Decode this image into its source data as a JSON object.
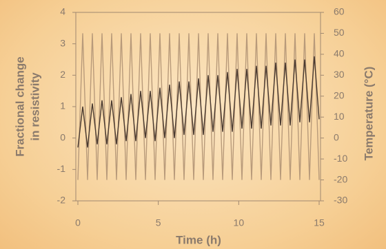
{
  "chart_data": {
    "type": "line",
    "xlabel": "Time (h)",
    "ylabel": [
      "Fractional change",
      "in resistivity"
    ],
    "y2label": "Temperature (°C)",
    "xlim": [
      0,
      15
    ],
    "xticks": [
      0,
      5,
      10,
      15
    ],
    "ylim": [
      -2,
      4
    ],
    "yticks": [
      4,
      3,
      2,
      1,
      0,
      -1,
      -2
    ],
    "y2lim": [
      -30,
      60
    ],
    "y2ticks": [
      60,
      50,
      40,
      30,
      20,
      10,
      0,
      -10,
      -20,
      -30
    ],
    "x": [
      0,
      0.3,
      0.6,
      0.9,
      1.2,
      1.5,
      1.8,
      2.1,
      2.4,
      2.7,
      3,
      3.3,
      3.6,
      3.9,
      4.2,
      4.5,
      4.8,
      5.1,
      5.4,
      5.7,
      6,
      6.3,
      6.6,
      6.9,
      7.2,
      7.5,
      7.8,
      8.1,
      8.4,
      8.7,
      9,
      9.3,
      9.6,
      9.9,
      10.2,
      10.5,
      10.8,
      11.1,
      11.4,
      11.7,
      12,
      12.3,
      12.6,
      12.9,
      13.2,
      13.5,
      13.8,
      14.1,
      14.4,
      14.7,
      15
    ],
    "series": [
      {
        "color": "#b89a7a",
        "axis": "y2",
        "values": [
          -20,
          50,
          -20,
          50,
          -20,
          50,
          -20,
          50,
          -20,
          50,
          -20,
          50,
          -20,
          50,
          -20,
          50,
          -20,
          50,
          -20,
          50,
          -20,
          50,
          -20,
          50,
          -20,
          50,
          -20,
          50,
          -20,
          50,
          -20,
          50,
          -20,
          50,
          -20,
          50,
          -20,
          50,
          -20,
          50,
          -20,
          50,
          -20,
          50,
          -20,
          50,
          -20,
          50,
          -20,
          50,
          -20
        ]
      },
      {
        "color": "#4a3a30",
        "values": [
          -0.3,
          1.0,
          -0.3,
          1.1,
          -0.2,
          1.2,
          -0.2,
          1.2,
          -0.2,
          1.3,
          -0.1,
          1.4,
          -0.1,
          1.5,
          0,
          1.5,
          -0.1,
          1.6,
          0,
          1.7,
          0,
          1.8,
          0.1,
          1.8,
          0.1,
          1.9,
          0.1,
          2.0,
          0.2,
          2.0,
          0.2,
          2.1,
          0.2,
          2.2,
          0.3,
          2.2,
          0.3,
          2.3,
          0.3,
          2.3,
          0.4,
          2.4,
          0.4,
          2.4,
          0.4,
          2.5,
          0.5,
          2.5,
          0.5,
          2.6,
          0.6
        ]
      }
    ]
  }
}
